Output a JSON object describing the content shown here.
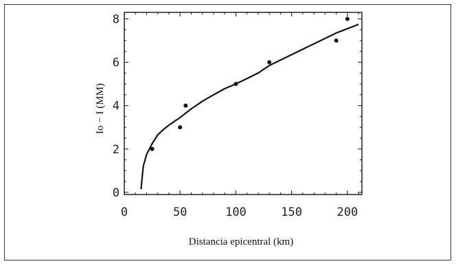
{
  "chart_data": {
    "type": "scatter",
    "title": "",
    "xlabel": "Distancia epicentral  (km)",
    "ylabel": "Io  −  I  (MM)",
    "xlim": [
      0,
      213
    ],
    "ylim": [
      -0.1,
      8.3
    ],
    "xticks": [
      0,
      50,
      100,
      150,
      200
    ],
    "yticks": [
      0,
      2,
      4,
      6,
      8
    ],
    "grid": false,
    "series": [
      {
        "kind": "points",
        "x": [
          25,
          50,
          55,
          100,
          130,
          190,
          200
        ],
        "y": [
          2,
          3,
          4,
          5,
          6,
          7,
          8
        ]
      },
      {
        "kind": "fitted-curve",
        "x": [
          15,
          17,
          20,
          25,
          30,
          35,
          40,
          50,
          60,
          70,
          80,
          90,
          100,
          110,
          120,
          130,
          140,
          150,
          160,
          170,
          180,
          190,
          200,
          210
        ],
        "y": [
          0.15,
          1.2,
          1.75,
          2.25,
          2.65,
          2.9,
          3.1,
          3.45,
          3.85,
          4.2,
          4.5,
          4.78,
          5.0,
          5.25,
          5.5,
          5.85,
          6.1,
          6.35,
          6.6,
          6.85,
          7.1,
          7.35,
          7.55,
          7.75
        ]
      }
    ]
  }
}
